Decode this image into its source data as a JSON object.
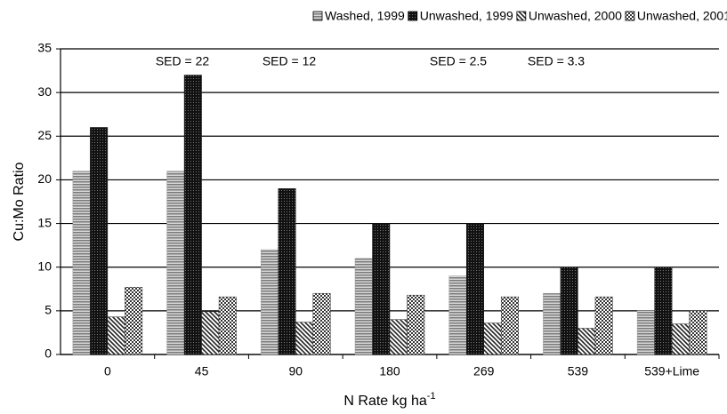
{
  "chart_data": {
    "type": "bar",
    "y_label": "Cu:Mo Ratio",
    "x_label": {
      "text": "N Rate kg ha",
      "superscript": "-1"
    },
    "categories": [
      "0",
      "45",
      "90",
      "180",
      "269",
      "539",
      "539+Lime"
    ],
    "series": [
      {
        "name": "Washed, 1999",
        "color": "#9a9a9a",
        "pattern": "horizontal",
        "values": [
          21,
          21,
          12,
          11,
          9,
          7,
          5
        ]
      },
      {
        "name": "Unwashed, 1999",
        "color": "#1a1a1a",
        "pattern": "dots",
        "values": [
          26,
          32,
          19,
          15,
          15,
          10,
          10
        ]
      },
      {
        "name": "Unwashed, 2000",
        "color": "#222222",
        "pattern": "diagonal",
        "values": [
          4.3,
          4.9,
          3.7,
          4.0,
          3.6,
          3.0,
          3.5
        ]
      },
      {
        "name": "Unwashed, 2001",
        "color": "#333333",
        "pattern": "checker",
        "values": [
          7.7,
          6.6,
          7.0,
          6.8,
          6.6,
          6.6,
          5.0
        ]
      }
    ],
    "annotations": [
      "SED = 22",
      "SED = 12",
      "SED = 2.5",
      "SED = 3.3"
    ],
    "ylim": [
      0,
      35
    ],
    "yticks": [
      0,
      5,
      10,
      15,
      20,
      25,
      30,
      35
    ],
    "grid": true,
    "legend": "top"
  }
}
